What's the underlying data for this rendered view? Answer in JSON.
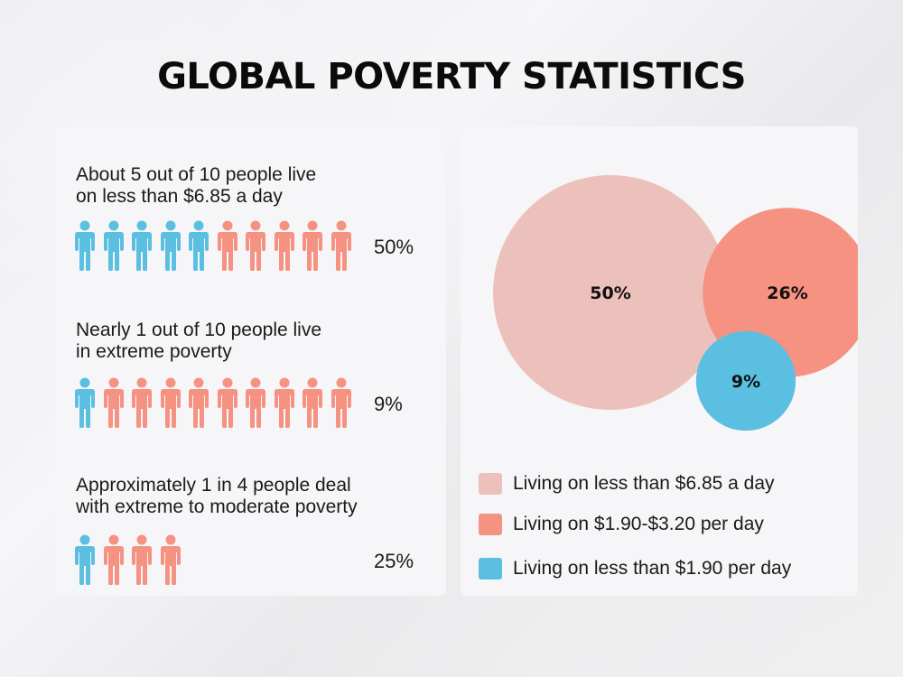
{
  "title": "GLOBAL POVERTY STATISTICS",
  "colors": {
    "blue": "#5bbfe2",
    "salmon": "#f59282",
    "pink": "#edc1bb"
  },
  "stats": [
    {
      "text": "About 5 out of 10 people live\non less than $6.85 a day",
      "blue_count": 5,
      "total": 10,
      "percent_label": "50%"
    },
    {
      "text": "Nearly 1 out of 10 people live\nin extreme poverty",
      "blue_count": 1,
      "total": 10,
      "percent_label": "9%"
    },
    {
      "text": "Approximately 1 in 4 people deal\nwith extreme to moderate poverty",
      "blue_count": 1,
      "total": 4,
      "percent_label": "25%"
    }
  ],
  "chart_data": {
    "type": "bubble",
    "series": [
      {
        "name": "Living on less than $6.85 a day",
        "value": 50,
        "label": "50%",
        "color": "#edc1bb"
      },
      {
        "name": "Living on $1.90-$3.20 per day",
        "value": 26,
        "label": "26%",
        "color": "#f59282"
      },
      {
        "name": "Living on less than $1.90 per day",
        "value": 9,
        "label": "9%",
        "color": "#5bbfe2"
      }
    ]
  }
}
